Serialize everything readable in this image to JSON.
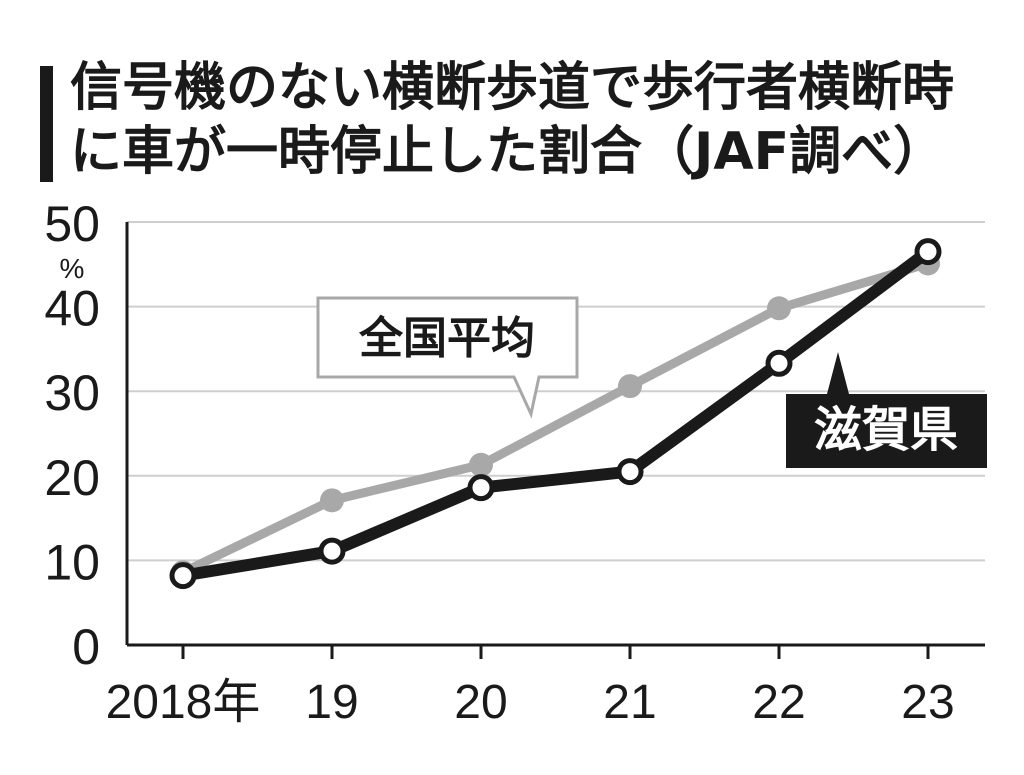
{
  "title": {
    "line1": "信号機のない横断歩道で歩行者横断時",
    "line2": "に車が一時停止した割合（JAF調べ）"
  },
  "colors": {
    "national": "#a8a8a8",
    "shiga": "#1a1a1a",
    "grid": "#cfcfcf",
    "axis": "#1a1a1a"
  },
  "chart_data": {
    "type": "line",
    "categories": [
      "2018年",
      "19",
      "20",
      "21",
      "22",
      "23"
    ],
    "x": [
      2018,
      2019,
      2020,
      2021,
      2022,
      2023
    ],
    "ylim": [
      0,
      50
    ],
    "y_ticks": [
      0,
      10,
      20,
      30,
      40,
      50
    ],
    "y_unit": "%",
    "grid": true,
    "series": [
      {
        "name": "全国平均",
        "values": [
          8.6,
          17.1,
          21.3,
          30.6,
          39.8,
          45.1
        ]
      },
      {
        "name": "滋賀県",
        "values": [
          8.2,
          11.1,
          18.6,
          20.5,
          33.3,
          46.5
        ]
      }
    ]
  }
}
